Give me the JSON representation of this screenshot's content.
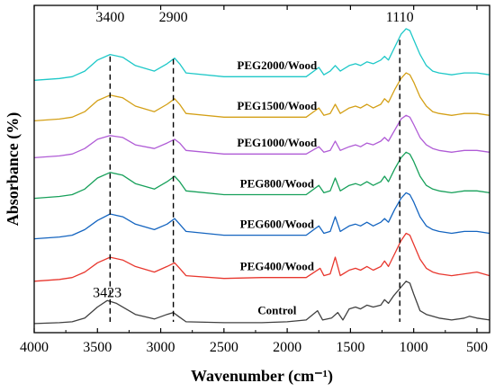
{
  "chart_data": {
    "type": "line",
    "xlabel": "Wavenumber (cm⁻¹)",
    "ylabel": "Absorbance (%)",
    "xlim": [
      4000,
      400
    ],
    "x_reversed": true,
    "x_ticks": [
      4000,
      3500,
      3000,
      2500,
      2000,
      1500,
      1000,
      500
    ],
    "y_ticks_shown": false,
    "grid": false,
    "series": [
      {
        "name": "Control",
        "color": "#404040",
        "offset": 0.0,
        "points": [
          [
            4000,
            0.01
          ],
          [
            3800,
            0.015
          ],
          [
            3700,
            0.02
          ],
          [
            3600,
            0.04
          ],
          [
            3500,
            0.1
          ],
          [
            3423,
            0.135
          ],
          [
            3350,
            0.12
          ],
          [
            3200,
            0.06
          ],
          [
            3050,
            0.035
          ],
          [
            2950,
            0.06
          ],
          [
            2900,
            0.07
          ],
          [
            2860,
            0.05
          ],
          [
            2800,
            0.02
          ],
          [
            2500,
            0.015
          ],
          [
            2200,
            0.015
          ],
          [
            2000,
            0.02
          ],
          [
            1850,
            0.03
          ],
          [
            1760,
            0.08
          ],
          [
            1720,
            0.03
          ],
          [
            1650,
            0.04
          ],
          [
            1600,
            0.07
          ],
          [
            1560,
            0.03
          ],
          [
            1510,
            0.09
          ],
          [
            1460,
            0.1
          ],
          [
            1420,
            0.09
          ],
          [
            1370,
            0.11
          ],
          [
            1320,
            0.1
          ],
          [
            1260,
            0.11
          ],
          [
            1230,
            0.14
          ],
          [
            1200,
            0.12
          ],
          [
            1160,
            0.16
          ],
          [
            1110,
            0.2
          ],
          [
            1060,
            0.24
          ],
          [
            1030,
            0.23
          ],
          [
            1000,
            0.17
          ],
          [
            950,
            0.08
          ],
          [
            900,
            0.06
          ],
          [
            850,
            0.05
          ],
          [
            800,
            0.04
          ],
          [
            700,
            0.03
          ],
          [
            600,
            0.04
          ],
          [
            560,
            0.05
          ],
          [
            500,
            0.04
          ],
          [
            400,
            0.03
          ]
        ]
      },
      {
        "name": "PEG400/Wood",
        "color": "#e8372e",
        "offset": 0.24,
        "points": [
          [
            4000,
            0.0
          ],
          [
            3800,
            0.01
          ],
          [
            3700,
            0.02
          ],
          [
            3600,
            0.05
          ],
          [
            3500,
            0.1
          ],
          [
            3400,
            0.13
          ],
          [
            3300,
            0.115
          ],
          [
            3200,
            0.08
          ],
          [
            3050,
            0.05
          ],
          [
            2950,
            0.08
          ],
          [
            2890,
            0.1
          ],
          [
            2850,
            0.07
          ],
          [
            2800,
            0.03
          ],
          [
            2500,
            0.015
          ],
          [
            2200,
            0.02
          ],
          [
            2000,
            0.02
          ],
          [
            1850,
            0.02
          ],
          [
            1740,
            0.07
          ],
          [
            1710,
            0.03
          ],
          [
            1660,
            0.04
          ],
          [
            1620,
            0.13
          ],
          [
            1580,
            0.03
          ],
          [
            1510,
            0.06
          ],
          [
            1460,
            0.07
          ],
          [
            1420,
            0.06
          ],
          [
            1370,
            0.08
          ],
          [
            1320,
            0.06
          ],
          [
            1260,
            0.08
          ],
          [
            1230,
            0.11
          ],
          [
            1200,
            0.08
          ],
          [
            1150,
            0.15
          ],
          [
            1100,
            0.22
          ],
          [
            1060,
            0.26
          ],
          [
            1030,
            0.25
          ],
          [
            1000,
            0.2
          ],
          [
            950,
            0.12
          ],
          [
            900,
            0.07
          ],
          [
            850,
            0.05
          ],
          [
            800,
            0.04
          ],
          [
            700,
            0.03
          ],
          [
            600,
            0.04
          ],
          [
            500,
            0.05
          ],
          [
            400,
            0.03
          ]
        ]
      },
      {
        "name": "PEG600/Wood",
        "color": "#1565c0",
        "offset": 0.47,
        "points": [
          [
            4000,
            0.0
          ],
          [
            3800,
            0.01
          ],
          [
            3700,
            0.02
          ],
          [
            3600,
            0.05
          ],
          [
            3500,
            0.1
          ],
          [
            3400,
            0.135
          ],
          [
            3300,
            0.12
          ],
          [
            3200,
            0.08
          ],
          [
            3050,
            0.05
          ],
          [
            2950,
            0.08
          ],
          [
            2890,
            0.11
          ],
          [
            2850,
            0.08
          ],
          [
            2800,
            0.04
          ],
          [
            2500,
            0.02
          ],
          [
            2200,
            0.02
          ],
          [
            2000,
            0.02
          ],
          [
            1850,
            0.02
          ],
          [
            1750,
            0.07
          ],
          [
            1710,
            0.03
          ],
          [
            1660,
            0.04
          ],
          [
            1620,
            0.12
          ],
          [
            1580,
            0.04
          ],
          [
            1510,
            0.07
          ],
          [
            1460,
            0.08
          ],
          [
            1420,
            0.07
          ],
          [
            1370,
            0.09
          ],
          [
            1320,
            0.07
          ],
          [
            1260,
            0.09
          ],
          [
            1230,
            0.11
          ],
          [
            1200,
            0.09
          ],
          [
            1150,
            0.16
          ],
          [
            1100,
            0.22
          ],
          [
            1060,
            0.25
          ],
          [
            1030,
            0.24
          ],
          [
            1000,
            0.2
          ],
          [
            950,
            0.12
          ],
          [
            900,
            0.07
          ],
          [
            850,
            0.05
          ],
          [
            800,
            0.04
          ],
          [
            700,
            0.03
          ],
          [
            600,
            0.04
          ],
          [
            500,
            0.04
          ],
          [
            400,
            0.03
          ]
        ]
      },
      {
        "name": "PEG800/Wood",
        "color": "#17a05a",
        "offset": 0.69,
        "points": [
          [
            4000,
            0.0
          ],
          [
            3800,
            0.01
          ],
          [
            3700,
            0.02
          ],
          [
            3600,
            0.05
          ],
          [
            3500,
            0.11
          ],
          [
            3400,
            0.14
          ],
          [
            3300,
            0.125
          ],
          [
            3200,
            0.08
          ],
          [
            3050,
            0.05
          ],
          [
            2950,
            0.09
          ],
          [
            2890,
            0.12
          ],
          [
            2850,
            0.09
          ],
          [
            2800,
            0.04
          ],
          [
            2500,
            0.02
          ],
          [
            2200,
            0.02
          ],
          [
            2000,
            0.02
          ],
          [
            1850,
            0.02
          ],
          [
            1750,
            0.07
          ],
          [
            1710,
            0.03
          ],
          [
            1660,
            0.04
          ],
          [
            1620,
            0.11
          ],
          [
            1580,
            0.04
          ],
          [
            1510,
            0.07
          ],
          [
            1460,
            0.08
          ],
          [
            1420,
            0.07
          ],
          [
            1370,
            0.09
          ],
          [
            1320,
            0.07
          ],
          [
            1260,
            0.09
          ],
          [
            1230,
            0.12
          ],
          [
            1200,
            0.09
          ],
          [
            1150,
            0.16
          ],
          [
            1100,
            0.22
          ],
          [
            1060,
            0.25
          ],
          [
            1030,
            0.24
          ],
          [
            1000,
            0.2
          ],
          [
            950,
            0.12
          ],
          [
            900,
            0.07
          ],
          [
            850,
            0.05
          ],
          [
            800,
            0.04
          ],
          [
            700,
            0.03
          ],
          [
            600,
            0.04
          ],
          [
            500,
            0.04
          ],
          [
            400,
            0.03
          ]
        ]
      },
      {
        "name": "PEG1000/Wood",
        "color": "#b05cd6",
        "offset": 0.91,
        "points": [
          [
            4000,
            0.0
          ],
          [
            3800,
            0.01
          ],
          [
            3700,
            0.02
          ],
          [
            3600,
            0.05
          ],
          [
            3500,
            0.1
          ],
          [
            3400,
            0.12
          ],
          [
            3300,
            0.11
          ],
          [
            3200,
            0.07
          ],
          [
            3050,
            0.05
          ],
          [
            2950,
            0.08
          ],
          [
            2890,
            0.1
          ],
          [
            2850,
            0.08
          ],
          [
            2800,
            0.04
          ],
          [
            2500,
            0.02
          ],
          [
            2200,
            0.02
          ],
          [
            2000,
            0.02
          ],
          [
            1850,
            0.02
          ],
          [
            1750,
            0.06
          ],
          [
            1710,
            0.03
          ],
          [
            1660,
            0.04
          ],
          [
            1620,
            0.09
          ],
          [
            1580,
            0.04
          ],
          [
            1510,
            0.06
          ],
          [
            1460,
            0.07
          ],
          [
            1420,
            0.06
          ],
          [
            1370,
            0.08
          ],
          [
            1320,
            0.07
          ],
          [
            1260,
            0.09
          ],
          [
            1230,
            0.11
          ],
          [
            1200,
            0.09
          ],
          [
            1150,
            0.15
          ],
          [
            1100,
            0.21
          ],
          [
            1060,
            0.23
          ],
          [
            1030,
            0.22
          ],
          [
            1000,
            0.18
          ],
          [
            950,
            0.11
          ],
          [
            900,
            0.07
          ],
          [
            850,
            0.05
          ],
          [
            800,
            0.04
          ],
          [
            700,
            0.03
          ],
          [
            600,
            0.04
          ],
          [
            500,
            0.04
          ],
          [
            400,
            0.03
          ]
        ]
      },
      {
        "name": "PEG1500/Wood",
        "color": "#d4a017",
        "offset": 1.11,
        "points": [
          [
            4000,
            0.0
          ],
          [
            3800,
            0.01
          ],
          [
            3700,
            0.02
          ],
          [
            3600,
            0.05
          ],
          [
            3500,
            0.11
          ],
          [
            3400,
            0.14
          ],
          [
            3300,
            0.125
          ],
          [
            3200,
            0.08
          ],
          [
            3050,
            0.05
          ],
          [
            2950,
            0.09
          ],
          [
            2890,
            0.12
          ],
          [
            2850,
            0.09
          ],
          [
            2800,
            0.04
          ],
          [
            2500,
            0.02
          ],
          [
            2200,
            0.02
          ],
          [
            2000,
            0.02
          ],
          [
            1850,
            0.02
          ],
          [
            1750,
            0.07
          ],
          [
            1710,
            0.03
          ],
          [
            1660,
            0.04
          ],
          [
            1620,
            0.09
          ],
          [
            1580,
            0.04
          ],
          [
            1510,
            0.07
          ],
          [
            1460,
            0.08
          ],
          [
            1420,
            0.07
          ],
          [
            1370,
            0.09
          ],
          [
            1320,
            0.07
          ],
          [
            1260,
            0.09
          ],
          [
            1230,
            0.12
          ],
          [
            1200,
            0.1
          ],
          [
            1150,
            0.17
          ],
          [
            1100,
            0.23
          ],
          [
            1060,
            0.26
          ],
          [
            1030,
            0.25
          ],
          [
            1000,
            0.21
          ],
          [
            950,
            0.13
          ],
          [
            900,
            0.08
          ],
          [
            850,
            0.05
          ],
          [
            800,
            0.04
          ],
          [
            700,
            0.03
          ],
          [
            600,
            0.04
          ],
          [
            500,
            0.04
          ],
          [
            400,
            0.03
          ]
        ]
      },
      {
        "name": "PEG2000/Wood",
        "color": "#1ec8c8",
        "offset": 1.33,
        "points": [
          [
            4000,
            0.0
          ],
          [
            3800,
            0.01
          ],
          [
            3700,
            0.02
          ],
          [
            3600,
            0.05
          ],
          [
            3500,
            0.11
          ],
          [
            3400,
            0.14
          ],
          [
            3300,
            0.125
          ],
          [
            3200,
            0.08
          ],
          [
            3050,
            0.05
          ],
          [
            2950,
            0.09
          ],
          [
            2890,
            0.12
          ],
          [
            2850,
            0.09
          ],
          [
            2800,
            0.04
          ],
          [
            2500,
            0.02
          ],
          [
            2200,
            0.02
          ],
          [
            2000,
            0.02
          ],
          [
            1850,
            0.02
          ],
          [
            1750,
            0.07
          ],
          [
            1710,
            0.03
          ],
          [
            1660,
            0.05
          ],
          [
            1620,
            0.08
          ],
          [
            1580,
            0.05
          ],
          [
            1510,
            0.08
          ],
          [
            1460,
            0.09
          ],
          [
            1420,
            0.08
          ],
          [
            1370,
            0.1
          ],
          [
            1320,
            0.09
          ],
          [
            1260,
            0.11
          ],
          [
            1230,
            0.13
          ],
          [
            1200,
            0.11
          ],
          [
            1150,
            0.18
          ],
          [
            1100,
            0.25
          ],
          [
            1060,
            0.28
          ],
          [
            1030,
            0.27
          ],
          [
            1000,
            0.22
          ],
          [
            950,
            0.14
          ],
          [
            900,
            0.08
          ],
          [
            850,
            0.05
          ],
          [
            800,
            0.04
          ],
          [
            700,
            0.03
          ],
          [
            600,
            0.04
          ],
          [
            500,
            0.04
          ],
          [
            400,
            0.03
          ]
        ]
      }
    ],
    "reference_lines": [
      {
        "x": 3400,
        "label": "3400"
      },
      {
        "x": 2900,
        "label": "2900"
      },
      {
        "x": 1110,
        "label": "1110"
      }
    ],
    "annotations": [
      {
        "label": "3423",
        "x": 3423
      }
    ]
  }
}
